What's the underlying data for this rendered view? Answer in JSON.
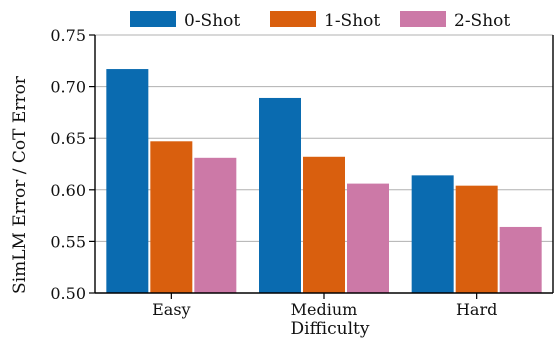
{
  "chart_data": {
    "type": "bar",
    "categories": [
      "Easy",
      "Medium",
      "Hard"
    ],
    "series": [
      {
        "name": "0-Shot",
        "color": "#0a6bb0",
        "values": [
          0.717,
          0.689,
          0.614
        ]
      },
      {
        "name": "1-Shot",
        "color": "#d95f0e",
        "values": [
          0.647,
          0.632,
          0.604
        ]
      },
      {
        "name": "2-Shot",
        "color": "#cc79a7",
        "values": [
          0.631,
          0.606,
          0.564
        ]
      }
    ],
    "title": "",
    "xlabel": "Difficulty",
    "ylabel": "SimLM Error / CoT Error",
    "ylim": [
      0.5,
      0.75
    ],
    "yticks": [
      "0.50",
      "0.55",
      "0.60",
      "0.65",
      "0.70",
      "0.75"
    ],
    "grid": "horizontal",
    "legend_placement": "top-center"
  }
}
